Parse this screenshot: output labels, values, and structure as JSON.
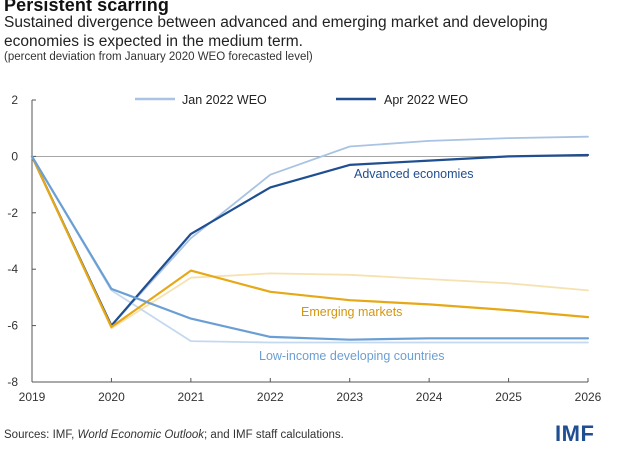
{
  "header": {
    "title": "Persistent scarring",
    "subtitle": "Sustained divergence between advanced and emerging market and developing economies is expected in the medium term.",
    "note": "(percent deviation from January 2020 WEO forecasted level)"
  },
  "footer": {
    "source_prefix": "Sources: IMF, ",
    "source_italic": "World Economic Outlook",
    "source_suffix": "; and IMF staff calculations.",
    "logo": "IMF"
  },
  "colors": {
    "adv_apr": "#1f4e91",
    "adv_jan": "#a9c3e3",
    "em_apr": "#e6a817",
    "em_jan": "#f6e2b0",
    "lic_apr": "#6b9fd4",
    "lic_jan": "#c4d9ef",
    "axis": "#555555",
    "zero": "#888888"
  },
  "chart_data": {
    "type": "line",
    "x": [
      "2019",
      "2020",
      "2021",
      "2022",
      "2023",
      "2024",
      "2025",
      "2026"
    ],
    "ylim": [
      -8,
      2
    ],
    "yticks": [
      "2",
      "0",
      "-2",
      "-4",
      "-6",
      "-8"
    ],
    "ytick_values": [
      2,
      0,
      -2,
      -4,
      -6,
      -8
    ],
    "legend": {
      "jan": "Jan 2022 WEO",
      "apr": "Apr 2022 WEO"
    },
    "annotations": {
      "advanced": "Advanced economies",
      "emerging": "Emerging markets",
      "lic": "Low-income developing countries"
    },
    "series": [
      {
        "name": "Advanced economies (Jan 2022 WEO)",
        "group": "adv",
        "vintage": "jan",
        "values": [
          0,
          -6.0,
          -2.9,
          -0.65,
          0.35,
          0.55,
          0.65,
          0.7
        ]
      },
      {
        "name": "Advanced economies (Apr 2022 WEO)",
        "group": "adv",
        "vintage": "apr",
        "values": [
          0,
          -6.0,
          -2.75,
          -1.1,
          -0.3,
          -0.15,
          0.0,
          0.05
        ]
      },
      {
        "name": "Emerging markets (Jan 2022 WEO)",
        "group": "em",
        "vintage": "jan",
        "values": [
          0,
          -6.1,
          -4.3,
          -4.15,
          -4.2,
          -4.35,
          -4.5,
          -4.75
        ]
      },
      {
        "name": "Emerging markets (Apr 2022 WEO)",
        "group": "em",
        "vintage": "apr",
        "values": [
          0,
          -6.05,
          -4.05,
          -4.8,
          -5.1,
          -5.25,
          -5.45,
          -5.7
        ]
      },
      {
        "name": "Low-income developing countries (Jan 2022 WEO)",
        "group": "lic",
        "vintage": "jan",
        "values": [
          0,
          -4.75,
          -6.55,
          -6.6,
          -6.6,
          -6.6,
          -6.6,
          -6.6
        ]
      },
      {
        "name": "Low-income developing countries (Apr 2022 WEO)",
        "group": "lic",
        "vintage": "apr",
        "values": [
          0,
          -4.7,
          -5.75,
          -6.4,
          -6.5,
          -6.45,
          -6.45,
          -6.45
        ]
      }
    ]
  }
}
